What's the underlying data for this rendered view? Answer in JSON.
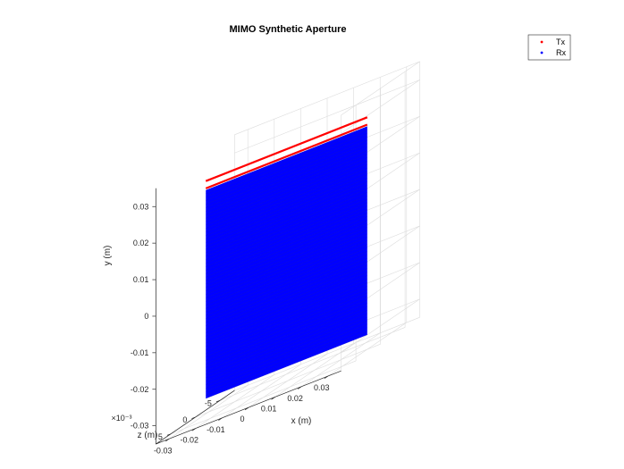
{
  "chart_data": {
    "type": "scatter3d",
    "title": "MIMO Synthetic Aperture",
    "xlabel": "x (m)",
    "ylabel": "y (m)",
    "zlabel": "z (m)",
    "z_exponent_label": "×10⁻³",
    "xlim": [
      -0.035,
      0.035
    ],
    "ylim": [
      -0.035,
      0.035
    ],
    "zlim": [
      -0.008,
      0.008
    ],
    "x_ticks": [
      -0.03,
      -0.02,
      -0.01,
      0,
      0.01,
      0.02,
      0.03
    ],
    "x_tick_labels": [
      "-0.03",
      "-0.02",
      "-0.01",
      "0",
      "0.01",
      "0.02",
      "0.03"
    ],
    "y_ticks": [
      -0.03,
      -0.02,
      -0.01,
      0,
      0.01,
      0.02,
      0.03
    ],
    "y_tick_labels": [
      "-0.03",
      "-0.02",
      "-0.01",
      "0",
      "0.01",
      "0.02",
      "0.03"
    ],
    "z_ticks": [
      -0.005,
      0,
      0.005
    ],
    "z_tick_labels": [
      "-5",
      "0",
      "5"
    ],
    "grid": true,
    "legend": {
      "position": "top-right",
      "entries": [
        "Tx",
        "Rx"
      ]
    },
    "series": [
      {
        "name": "Tx",
        "color": "#ff0000",
        "lines": [
          {
            "x": [
              -0.031,
              0.03
            ],
            "y": 0.0285,
            "z": 0
          },
          {
            "x": [
              -0.031,
              0.03
            ],
            "y": 0.0265,
            "z": 0
          }
        ]
      },
      {
        "name": "Rx",
        "color": "#0000ff",
        "plane": {
          "x": [
            -0.031,
            0.03
          ],
          "y": [
            -0.031,
            0.026
          ],
          "z": 0
        }
      }
    ]
  }
}
